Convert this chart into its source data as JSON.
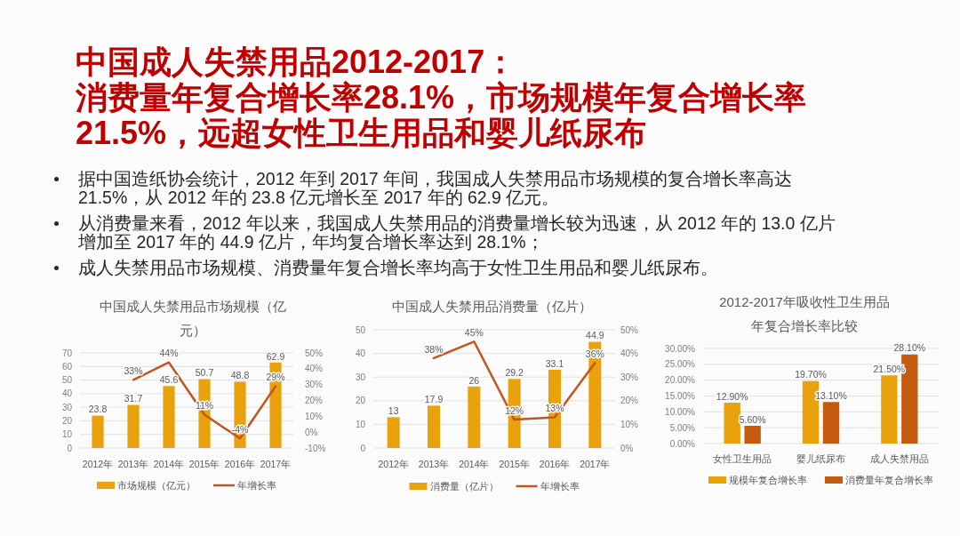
{
  "chart_data": [
    {
      "type": "other",
      "title": "中国成人失禁用品2012-2017：",
      "subtitle": "消费量年复合增长率28.1%，市场规模年复合增长率21.5%，远超女性卫生用品和婴儿纸尿布",
      "annotations": [
        "据中国造纸协会统计，2012 年到 2017 年间，我国成人失禁用品市场规模的复合增长率高达 21.5%，从 2012 年的 23.8 亿元增长至 2017 年的 62.9 亿元。",
        "从消费量来看，2012 年以来，我国成人失禁用品的消费量增长较为迅速，从 2012 年的 13.0 亿片增加至 2017 年的 44.9 亿片，年均复合增长率达到 28.1%；",
        "成人失禁用品市场规模、消费量年复合增长率均高于女性卫生用品和婴儿纸尿布。"
      ]
    },
    {
      "type": "bar",
      "title": "中国成人失禁用品市场规模（亿元）",
      "categories": [
        "2012年",
        "2013年",
        "2014年",
        "2015年",
        "2016年",
        "2017年"
      ],
      "series": [
        {
          "name": "市场规模（亿元）",
          "type": "bar",
          "color": "#e9a10c",
          "values": [
            23.8,
            31.7,
            45.6,
            50.7,
            48.8,
            62.9
          ]
        },
        {
          "name": "年增长率",
          "type": "line",
          "axis": "y2",
          "color": "#c4561b",
          "values": [
            null,
            33,
            44,
            11,
            -4,
            29
          ],
          "value_labels": [
            null,
            "33%",
            "44%",
            "11%",
            "-4%",
            "29%"
          ]
        }
      ],
      "ylim": [
        0,
        70
      ],
      "yticks": [
        0,
        10,
        20,
        30,
        40,
        50,
        60,
        70
      ],
      "y2lim": [
        -10,
        50
      ],
      "y2ticks": [
        {
          "value": -10,
          "label": "-10%"
        },
        {
          "value": 0,
          "label": "0%"
        },
        {
          "value": 10,
          "label": "10%"
        },
        {
          "value": 20,
          "label": "20%"
        },
        {
          "value": 30,
          "label": "30%"
        },
        {
          "value": 40,
          "label": "40%"
        },
        {
          "value": 50,
          "label": "50%"
        }
      ],
      "grid": "y",
      "legend": "bottom",
      "data_labels": true
    },
    {
      "type": "bar",
      "title": "中国成人失禁用品消费量（亿片）",
      "categories": [
        "2012年",
        "2013年",
        "2014年",
        "2015年",
        "2016年",
        "2017年"
      ],
      "series": [
        {
          "name": "消费量（亿片）",
          "type": "bar",
          "color": "#e9a10c",
          "values": [
            13,
            17.9,
            26,
            29.2,
            33.1,
            44.9
          ]
        },
        {
          "name": "年增长率",
          "type": "line",
          "axis": "y2",
          "color": "#c4561b",
          "values": [
            null,
            38,
            45,
            12,
            13,
            36
          ],
          "value_labels": [
            null,
            "38%",
            "45%",
            "12%",
            "13%",
            "36%"
          ]
        }
      ],
      "ylim": [
        0,
        50
      ],
      "yticks": [
        0,
        10,
        20,
        30,
        40,
        50
      ],
      "y2lim": [
        0,
        50
      ],
      "y2ticks": [
        {
          "value": 0,
          "label": "0%"
        },
        {
          "value": 10,
          "label": "10%"
        },
        {
          "value": 20,
          "label": "20%"
        },
        {
          "value": 30,
          "label": "30%"
        },
        {
          "value": 40,
          "label": "40%"
        },
        {
          "value": 50,
          "label": "50%"
        }
      ],
      "grid": "y",
      "legend": "bottom",
      "data_labels": true
    },
    {
      "type": "bar",
      "title": "2012-2017年吸收性卫生用品年复合增长率比较",
      "categories": [
        "女性卫生用品",
        "婴儿纸尿布",
        "成人失禁用品"
      ],
      "series": [
        {
          "name": "规模年复合增长率",
          "color": "#e9a10c",
          "values": [
            12.9,
            19.7,
            21.5
          ],
          "value_labels": [
            "12.90%",
            "19.70%",
            "21.50%"
          ]
        },
        {
          "name": "消费量年复合增长率",
          "color": "#c55a11",
          "values": [
            5.6,
            13.1,
            28.1
          ],
          "value_labels": [
            "5.60%",
            "13.10%",
            "28.10%"
          ]
        }
      ],
      "ylim": [
        0,
        30
      ],
      "yticks": [
        {
          "value": 0,
          "label": "0.00%"
        },
        {
          "value": 5,
          "label": "5.00%"
        },
        {
          "value": 10,
          "label": "10.00%"
        },
        {
          "value": 15,
          "label": "15.00%"
        },
        {
          "value": 20,
          "label": "20.00%"
        },
        {
          "value": 25,
          "label": "25.00%"
        },
        {
          "value": 30,
          "label": "30.00%"
        }
      ],
      "grid": "y",
      "legend": "bottom"
    }
  ]
}
